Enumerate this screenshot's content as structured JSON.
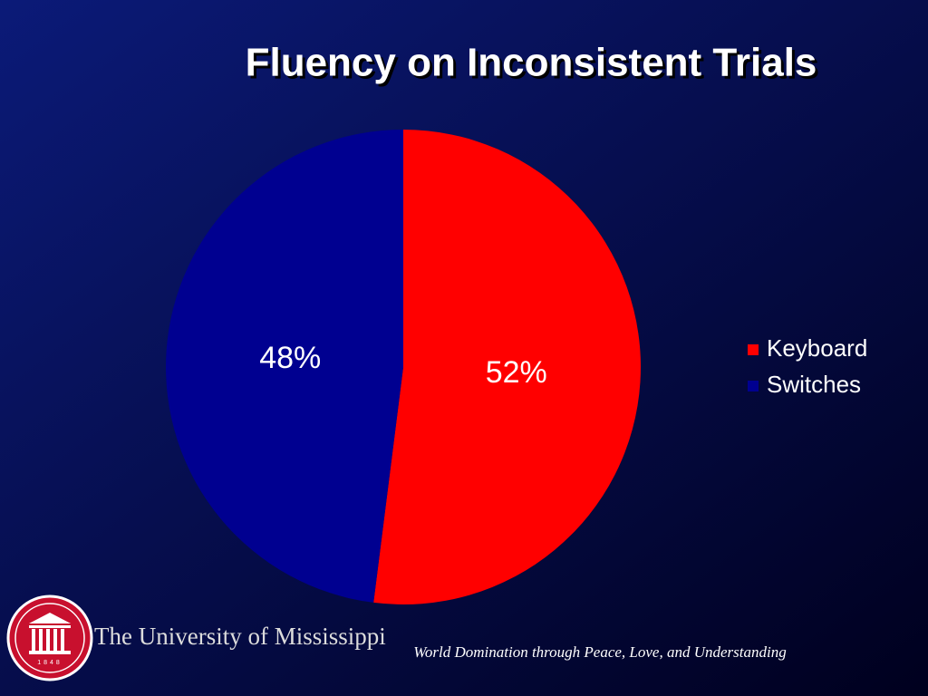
{
  "chart_data": {
    "type": "pie",
    "title": "Fluency on Inconsistent Trials",
    "categories": [
      "Keyboard",
      "Switches"
    ],
    "values": [
      52,
      48
    ],
    "value_labels": [
      "52%",
      "48%"
    ],
    "colors": [
      "#ff0000",
      "#000090"
    ],
    "legend": "right"
  },
  "footer": {
    "university": "The University of Mississippi",
    "logo_year": "1848",
    "tagline": "World Domination through Peace, Love, and Understanding"
  }
}
